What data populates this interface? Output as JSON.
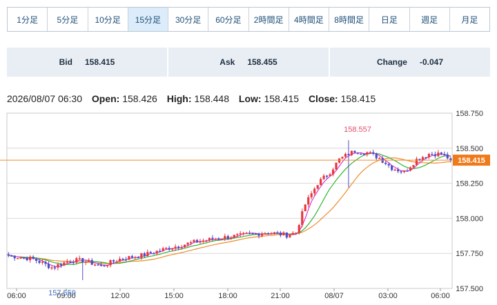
{
  "timeframe_tabs": [
    {
      "label": "1分足"
    },
    {
      "label": "5分足"
    },
    {
      "label": "10分足"
    },
    {
      "label": "15分足",
      "active": true
    },
    {
      "label": "30分足"
    },
    {
      "label": "60分足"
    },
    {
      "label": "2時間足"
    },
    {
      "label": "4時間足"
    },
    {
      "label": "8時間足"
    },
    {
      "label": "日足"
    },
    {
      "label": "週足"
    },
    {
      "label": "月足"
    }
  ],
  "quotes": {
    "bid_label": "Bid",
    "bid_value": "158.415",
    "ask_label": "Ask",
    "ask_value": "158.455",
    "change_label": "Change",
    "change_value": "-0.047"
  },
  "ohlc": {
    "datetime": "2026/08/07 06:30",
    "open_label": "Open:",
    "open": "158.426",
    "high_label": "High:",
    "high": "158.448",
    "low_label": "Low:",
    "low": "158.415",
    "close_label": "Close:",
    "close": "158.415"
  },
  "colors": {
    "up": "#e8383d",
    "down": "#4a4fc4",
    "ma_short": "#d23ad6",
    "ma_mid": "#33b233",
    "ma_long": "#ef8a2e",
    "price_line": "#ef8a2e",
    "price_tag": "#ef7a1a",
    "high_annot": "#e34f6c",
    "low_annot": "#3a6fbf"
  },
  "chart_data": {
    "type": "candlestick",
    "ylim": [
      157.5,
      158.75
    ],
    "y_ticks": [
      "157.500",
      "157.750",
      "158.000",
      "158.250",
      "158.500",
      "158.750"
    ],
    "x_tick_labels": [
      "06:00",
      "09:00",
      "12:00",
      "15:00",
      "18:00",
      "21:00",
      "08/07",
      "03:00",
      "06:00"
    ],
    "current_price": 158.415,
    "current_price_label": "158.415",
    "annotations": [
      {
        "text": "158.557",
        "value": 158.557,
        "kind": "high"
      },
      {
        "text": "157.559",
        "value": 157.559,
        "kind": "low"
      }
    ],
    "close_anchors": [
      [
        0,
        157.735
      ],
      [
        8,
        157.71
      ],
      [
        14,
        157.65
      ],
      [
        20,
        157.7
      ],
      [
        24,
        157.7
      ],
      [
        30,
        157.66
      ],
      [
        36,
        157.71
      ],
      [
        44,
        157.74
      ],
      [
        52,
        157.79
      ],
      [
        60,
        157.83
      ],
      [
        68,
        157.86
      ],
      [
        76,
        157.88
      ],
      [
        84,
        157.9
      ],
      [
        90,
        157.88
      ],
      [
        93,
        157.9
      ],
      [
        96,
        158.1
      ],
      [
        100,
        158.25
      ],
      [
        104,
        158.33
      ],
      [
        107,
        158.42
      ],
      [
        110,
        158.46
      ],
      [
        112,
        158.48
      ],
      [
        116,
        158.47
      ],
      [
        120,
        158.43
      ],
      [
        124,
        158.36
      ],
      [
        128,
        158.33
      ],
      [
        132,
        158.42
      ],
      [
        136,
        158.46
      ],
      [
        140,
        158.46
      ],
      [
        143,
        158.42
      ]
    ],
    "wicks": [
      {
        "index": 110,
        "high": 158.557,
        "low": 158.22
      },
      {
        "index": 24,
        "low": 157.559
      }
    ]
  }
}
